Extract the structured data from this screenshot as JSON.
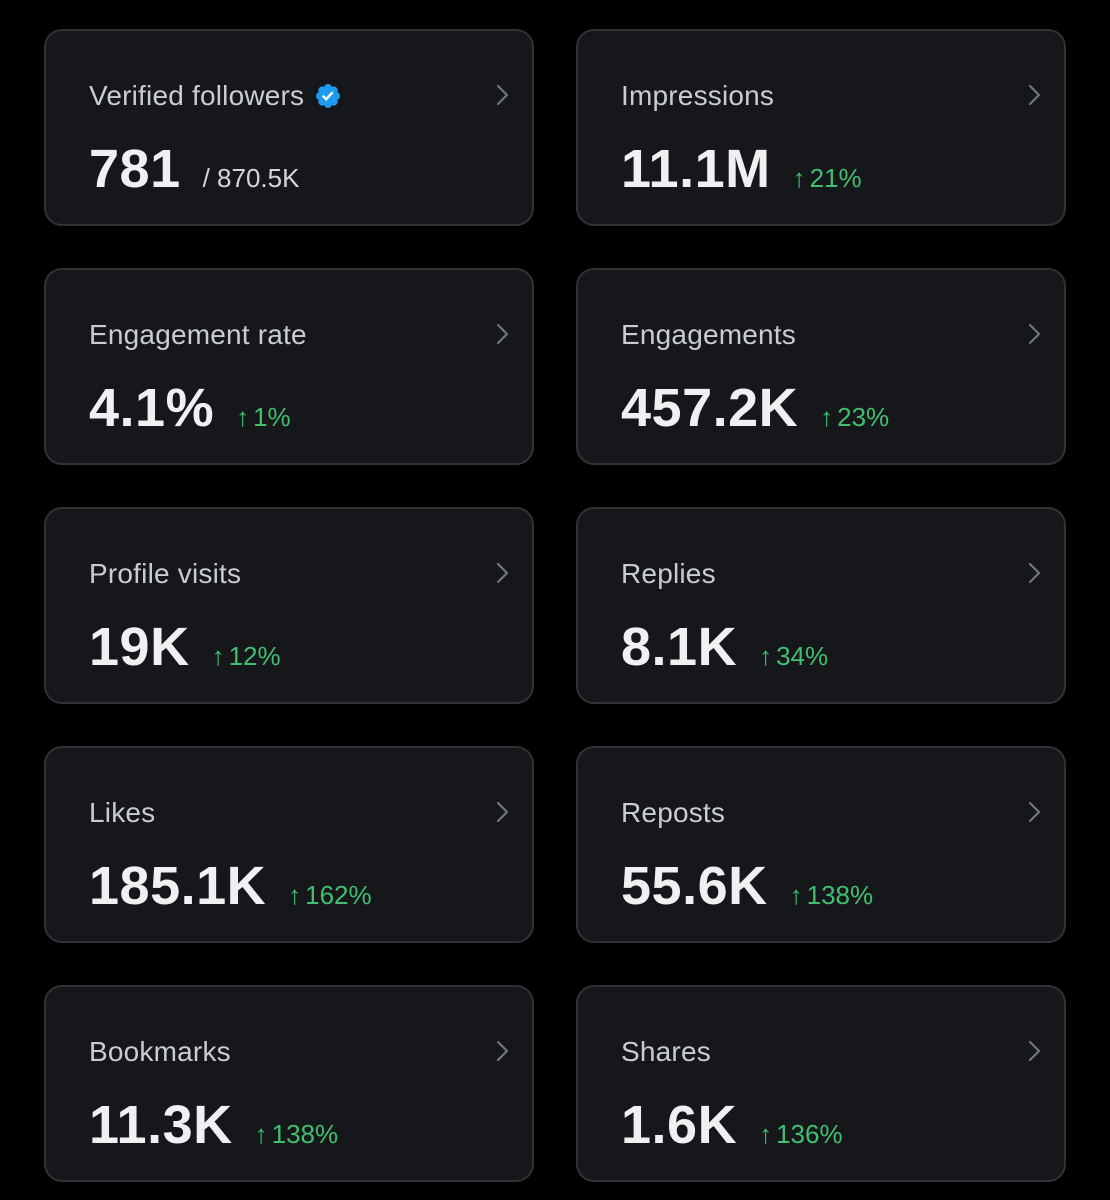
{
  "colors": {
    "background": "#000000",
    "card": "#16171b",
    "card_border": "#2f3336",
    "label": "#c9ccd1",
    "value": "#eef0f2",
    "positive": "#3fbf6f",
    "verified": "#1d9bf0"
  },
  "cards": [
    {
      "label": "Verified followers",
      "value": "781",
      "sub": "/ 870.5K",
      "icon": "verified-badge-icon"
    },
    {
      "label": "Impressions",
      "value": "11.1M",
      "change": "21%"
    },
    {
      "label": "Engagement rate",
      "value": "4.1%",
      "change": "1%"
    },
    {
      "label": "Engagements",
      "value": "457.2K",
      "change": "23%"
    },
    {
      "label": "Profile visits",
      "value": "19K",
      "change": "12%"
    },
    {
      "label": "Replies",
      "value": "8.1K",
      "change": "34%"
    },
    {
      "label": "Likes",
      "value": "185.1K",
      "change": "162%"
    },
    {
      "label": "Reposts",
      "value": "55.6K",
      "change": "138%"
    },
    {
      "label": "Bookmarks",
      "value": "11.3K",
      "change": "138%"
    },
    {
      "label": "Shares",
      "value": "1.6K",
      "change": "136%"
    }
  ],
  "arrow_glyph": "↑"
}
